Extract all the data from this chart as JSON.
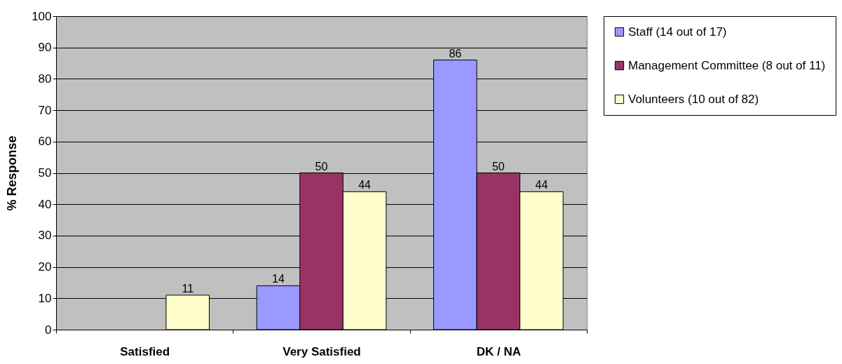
{
  "chart_data": {
    "type": "bar",
    "ylabel": "% Response",
    "categories": [
      "Satisfied",
      "Very Satisfied",
      "DK / NA"
    ],
    "series": [
      {
        "name": "Staff (14 out of 17)",
        "color": "#9999ff",
        "values": [
          null,
          14,
          86
        ]
      },
      {
        "name": "Management Committee (8 out of 11)",
        "color": "#993366",
        "values": [
          null,
          50,
          50
        ]
      },
      {
        "name": "Volunteers (10 out of 82)",
        "color": "#ffffcc",
        "values": [
          11,
          44,
          44
        ]
      }
    ],
    "ylim": [
      0,
      100
    ],
    "yticks": [
      0,
      10,
      20,
      30,
      40,
      50,
      60,
      70,
      80,
      90,
      100
    ],
    "grid": "y",
    "legend": "right",
    "data_labels": true
  }
}
